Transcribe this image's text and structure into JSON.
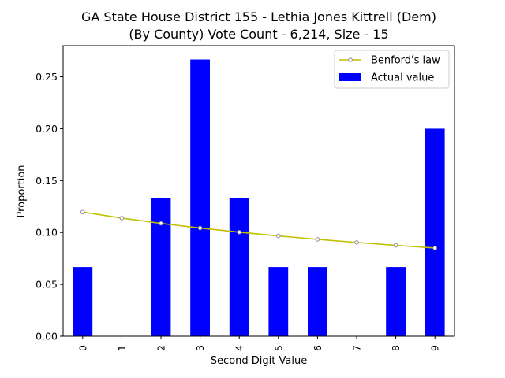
{
  "chart_data": {
    "type": "bar",
    "title_lines": [
      "GA State House District 155 - Lethia Jones Kittrell (Dem)",
      "(By County) Vote Count - 6,214, Size - 15"
    ],
    "xlabel": "Second Digit Value",
    "ylabel": "Proportion",
    "categories": [
      "0",
      "1",
      "2",
      "3",
      "4",
      "5",
      "6",
      "7",
      "8",
      "9"
    ],
    "ylim": [
      0,
      0.28
    ],
    "yticks": [
      0.0,
      0.05,
      0.1,
      0.15,
      0.2,
      0.25
    ],
    "ytick_labels": [
      "0.00",
      "0.05",
      "0.10",
      "0.15",
      "0.20",
      "0.25"
    ],
    "grid": false,
    "legend_position": "top-right",
    "series": [
      {
        "name": "Actual value",
        "kind": "bar",
        "color": "#0000ff",
        "values": [
          0.0667,
          0,
          0.1333,
          0.2667,
          0.1333,
          0.0667,
          0.0667,
          0,
          0.0667,
          0.2
        ]
      },
      {
        "name": "Benford's law",
        "kind": "line",
        "color": "#bfbf00",
        "marker_color": "#8f8f8f",
        "values": [
          0.1197,
          0.1139,
          0.1088,
          0.1043,
          0.1003,
          0.0967,
          0.0934,
          0.0904,
          0.0876,
          0.085
        ]
      }
    ]
  }
}
